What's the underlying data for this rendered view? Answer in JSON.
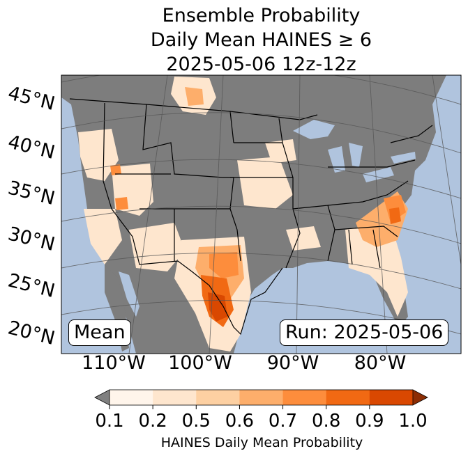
{
  "title": {
    "line1": "Ensemble Probability",
    "line2": "Daily Mean HAINES ≥ 6",
    "line3": "2025-05-06 12z-12z"
  },
  "map": {
    "lat_labels": [
      "45°N",
      "40°N",
      "35°N",
      "30°N",
      "25°N",
      "20°N"
    ],
    "lon_labels": [
      "110°W",
      "100°W",
      "90°W",
      "80°W"
    ],
    "mean_label": "Mean",
    "run_label": "Run: 2025-05-06",
    "colors": {
      "ocean": "#b0c4de",
      "missing": "#808080",
      "border": "#000000",
      "grid": "#555555"
    }
  },
  "colorbar": {
    "ticks": [
      "0.1",
      "0.2",
      "0.5",
      "0.6",
      "0.7",
      "0.8",
      "0.9",
      "1.0"
    ],
    "colors": [
      "#fff5eb",
      "#fee6ce",
      "#fdd0a2",
      "#fdae6b",
      "#fd8d3c",
      "#f16913",
      "#d94801"
    ],
    "under_color": "#808080",
    "over_color": "#8c2d04",
    "label": "HAINES Daily Mean Probability"
  }
}
